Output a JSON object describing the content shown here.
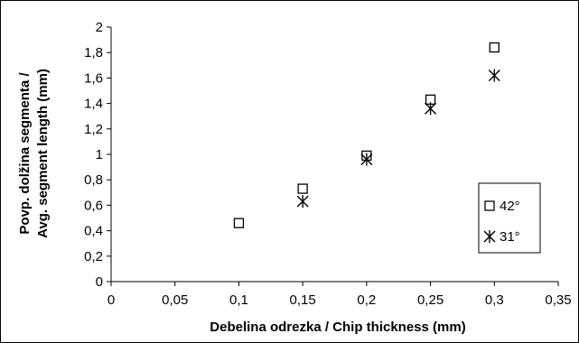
{
  "chart_data": {
    "type": "scatter",
    "title": "",
    "xlabel": "Debelina odrezka / Chip thickness (mm)",
    "ylabel_lines": [
      "Povp. dolžina segmenta /",
      "Avg. segment length (mm)"
    ],
    "xlim": [
      0,
      0.35
    ],
    "ylim": [
      0,
      2
    ],
    "x_ticks": [
      0,
      0.05,
      0.1,
      0.15,
      0.2,
      0.25,
      0.3,
      0.35
    ],
    "x_tick_labels": [
      "0",
      "0,05",
      "0,1",
      "0,15",
      "0,2",
      "0,25",
      "0,3",
      "0,35"
    ],
    "y_ticks": [
      0,
      0.2,
      0.4,
      0.6,
      0.8,
      1.0,
      1.2,
      1.4,
      1.6,
      1.8,
      2.0
    ],
    "y_tick_labels": [
      "0",
      "0,2",
      "0,4",
      "0,6",
      "0,8",
      "1",
      "1,2",
      "1,4",
      "1,6",
      "1,8",
      "2"
    ],
    "grid": false,
    "legend_position": "right",
    "series": [
      {
        "name": "42°",
        "marker": "square",
        "x": [
          0.1,
          0.15,
          0.2,
          0.25,
          0.3
        ],
        "y": [
          0.46,
          0.73,
          0.99,
          1.43,
          1.84
        ]
      },
      {
        "name": "31°",
        "marker": "star",
        "x": [
          0.15,
          0.2,
          0.25,
          0.3
        ],
        "y": [
          0.63,
          0.96,
          1.36,
          1.62
        ]
      }
    ]
  }
}
